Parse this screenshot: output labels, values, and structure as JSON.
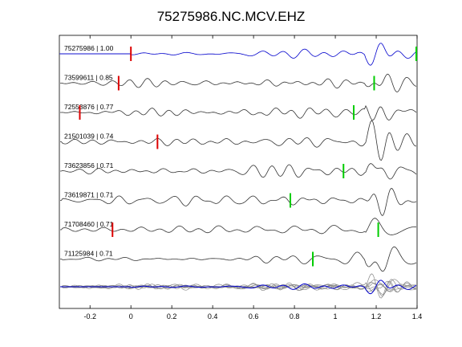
{
  "chart_data": {
    "type": "line",
    "title": "75275986.NC.MCV.EHZ",
    "xlabel": "",
    "ylabel": "",
    "xlim": [
      -0.35,
      1.4
    ],
    "xticks": [
      "-0.2",
      "0",
      "0.2",
      "0.4",
      "0.6",
      "0.8",
      "1",
      "1.2",
      "1.4"
    ],
    "xtick_values": [
      -0.2,
      0,
      0.2,
      0.4,
      0.6,
      0.8,
      1.0,
      1.2,
      1.4
    ],
    "grid": false,
    "colors": {
      "reference": "#0000cc",
      "trace": "#333333",
      "p_pick": "#dd0000",
      "s_pick": "#00cc00",
      "stack_gray": "#888888"
    },
    "traces": [
      {
        "label": "75275986 | 1.00",
        "is_reference": true,
        "p_pick": 0.0,
        "s_pick": 1.4
      },
      {
        "label": "73599611 | 0.85",
        "is_reference": false,
        "p_pick": -0.06,
        "s_pick": 1.19
      },
      {
        "label": "72553876 | 0.77",
        "is_reference": false,
        "p_pick": -0.25,
        "s_pick": 1.09
      },
      {
        "label": "21501039 | 0.74",
        "is_reference": false,
        "p_pick": 0.13,
        "s_pick": null
      },
      {
        "label": "73623856 | 0.71",
        "is_reference": false,
        "p_pick": null,
        "s_pick": 1.04
      },
      {
        "label": "73619871 | 0.71",
        "is_reference": false,
        "p_pick": null,
        "s_pick": 0.78
      },
      {
        "label": "71708460 | 0.71",
        "is_reference": false,
        "p_pick": -0.09,
        "s_pick": 1.21
      },
      {
        "label": "71125984 | 0.71",
        "is_reference": false,
        "p_pick": null,
        "s_pick": 0.89
      }
    ],
    "stack": {
      "label": "overlay of all traces"
    }
  }
}
